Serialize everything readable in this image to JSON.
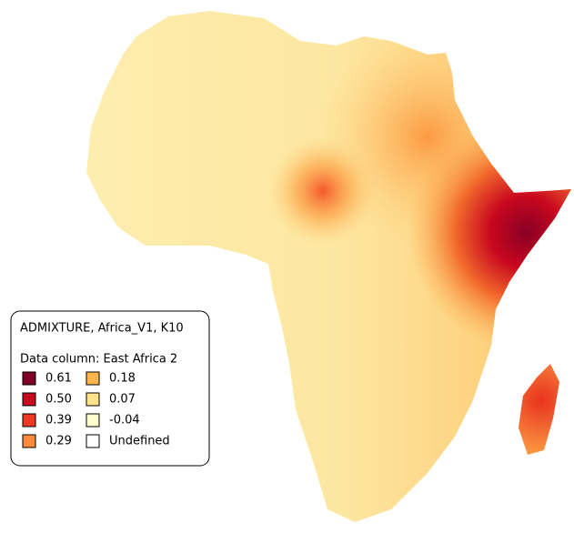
{
  "legend": {
    "title": "ADMIXTURE, Africa_V1, K10",
    "subtitle": "Data column: East Africa 2",
    "items": [
      {
        "label": "0.61",
        "color": "#800026"
      },
      {
        "label": "0.50",
        "color": "#c60a20"
      },
      {
        "label": "0.39",
        "color": "#ee3a24"
      },
      {
        "label": "0.29",
        "color": "#fc8a3e"
      },
      {
        "label": "0.18",
        "color": "#feb24c"
      },
      {
        "label": "0.07",
        "color": "#fee28a"
      },
      {
        "label": "-0.04",
        "color": "#ffffcc"
      },
      {
        "label": "Undefined",
        "color": "#ffffff"
      }
    ]
  }
}
